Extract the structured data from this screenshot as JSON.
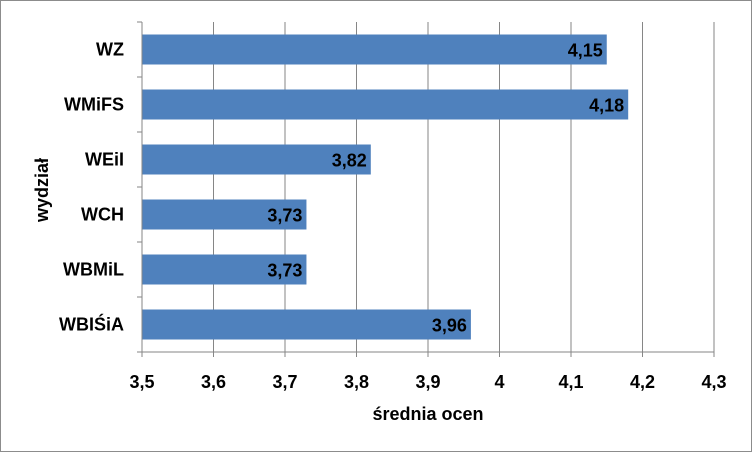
{
  "chart_data": {
    "type": "bar",
    "orientation": "horizontal",
    "categories": [
      "WZ",
      "WMiFS",
      "WEiI",
      "WCH",
      "WBMiL",
      "WBIŚiA"
    ],
    "values": [
      4.15,
      4.18,
      3.82,
      3.73,
      3.73,
      3.96
    ],
    "data_labels": [
      "4,15",
      "4,18",
      "3,82",
      "3,73",
      "3,73",
      "3,96"
    ],
    "xlabel": "średnia ocen",
    "ylabel": "wydział",
    "xlim": [
      3.5,
      4.3
    ],
    "xticks": [
      3.5,
      3.6,
      3.7,
      3.8,
      3.9,
      4.0,
      4.1,
      4.2,
      4.3
    ],
    "xtick_labels": [
      "3,5",
      "3,6",
      "3,7",
      "3,8",
      "3,9",
      "4",
      "4,1",
      "4,2",
      "4,3"
    ],
    "grid": "vertical",
    "legend": "none",
    "bar_color": "#4f81bd",
    "grid_color": "#868686"
  }
}
